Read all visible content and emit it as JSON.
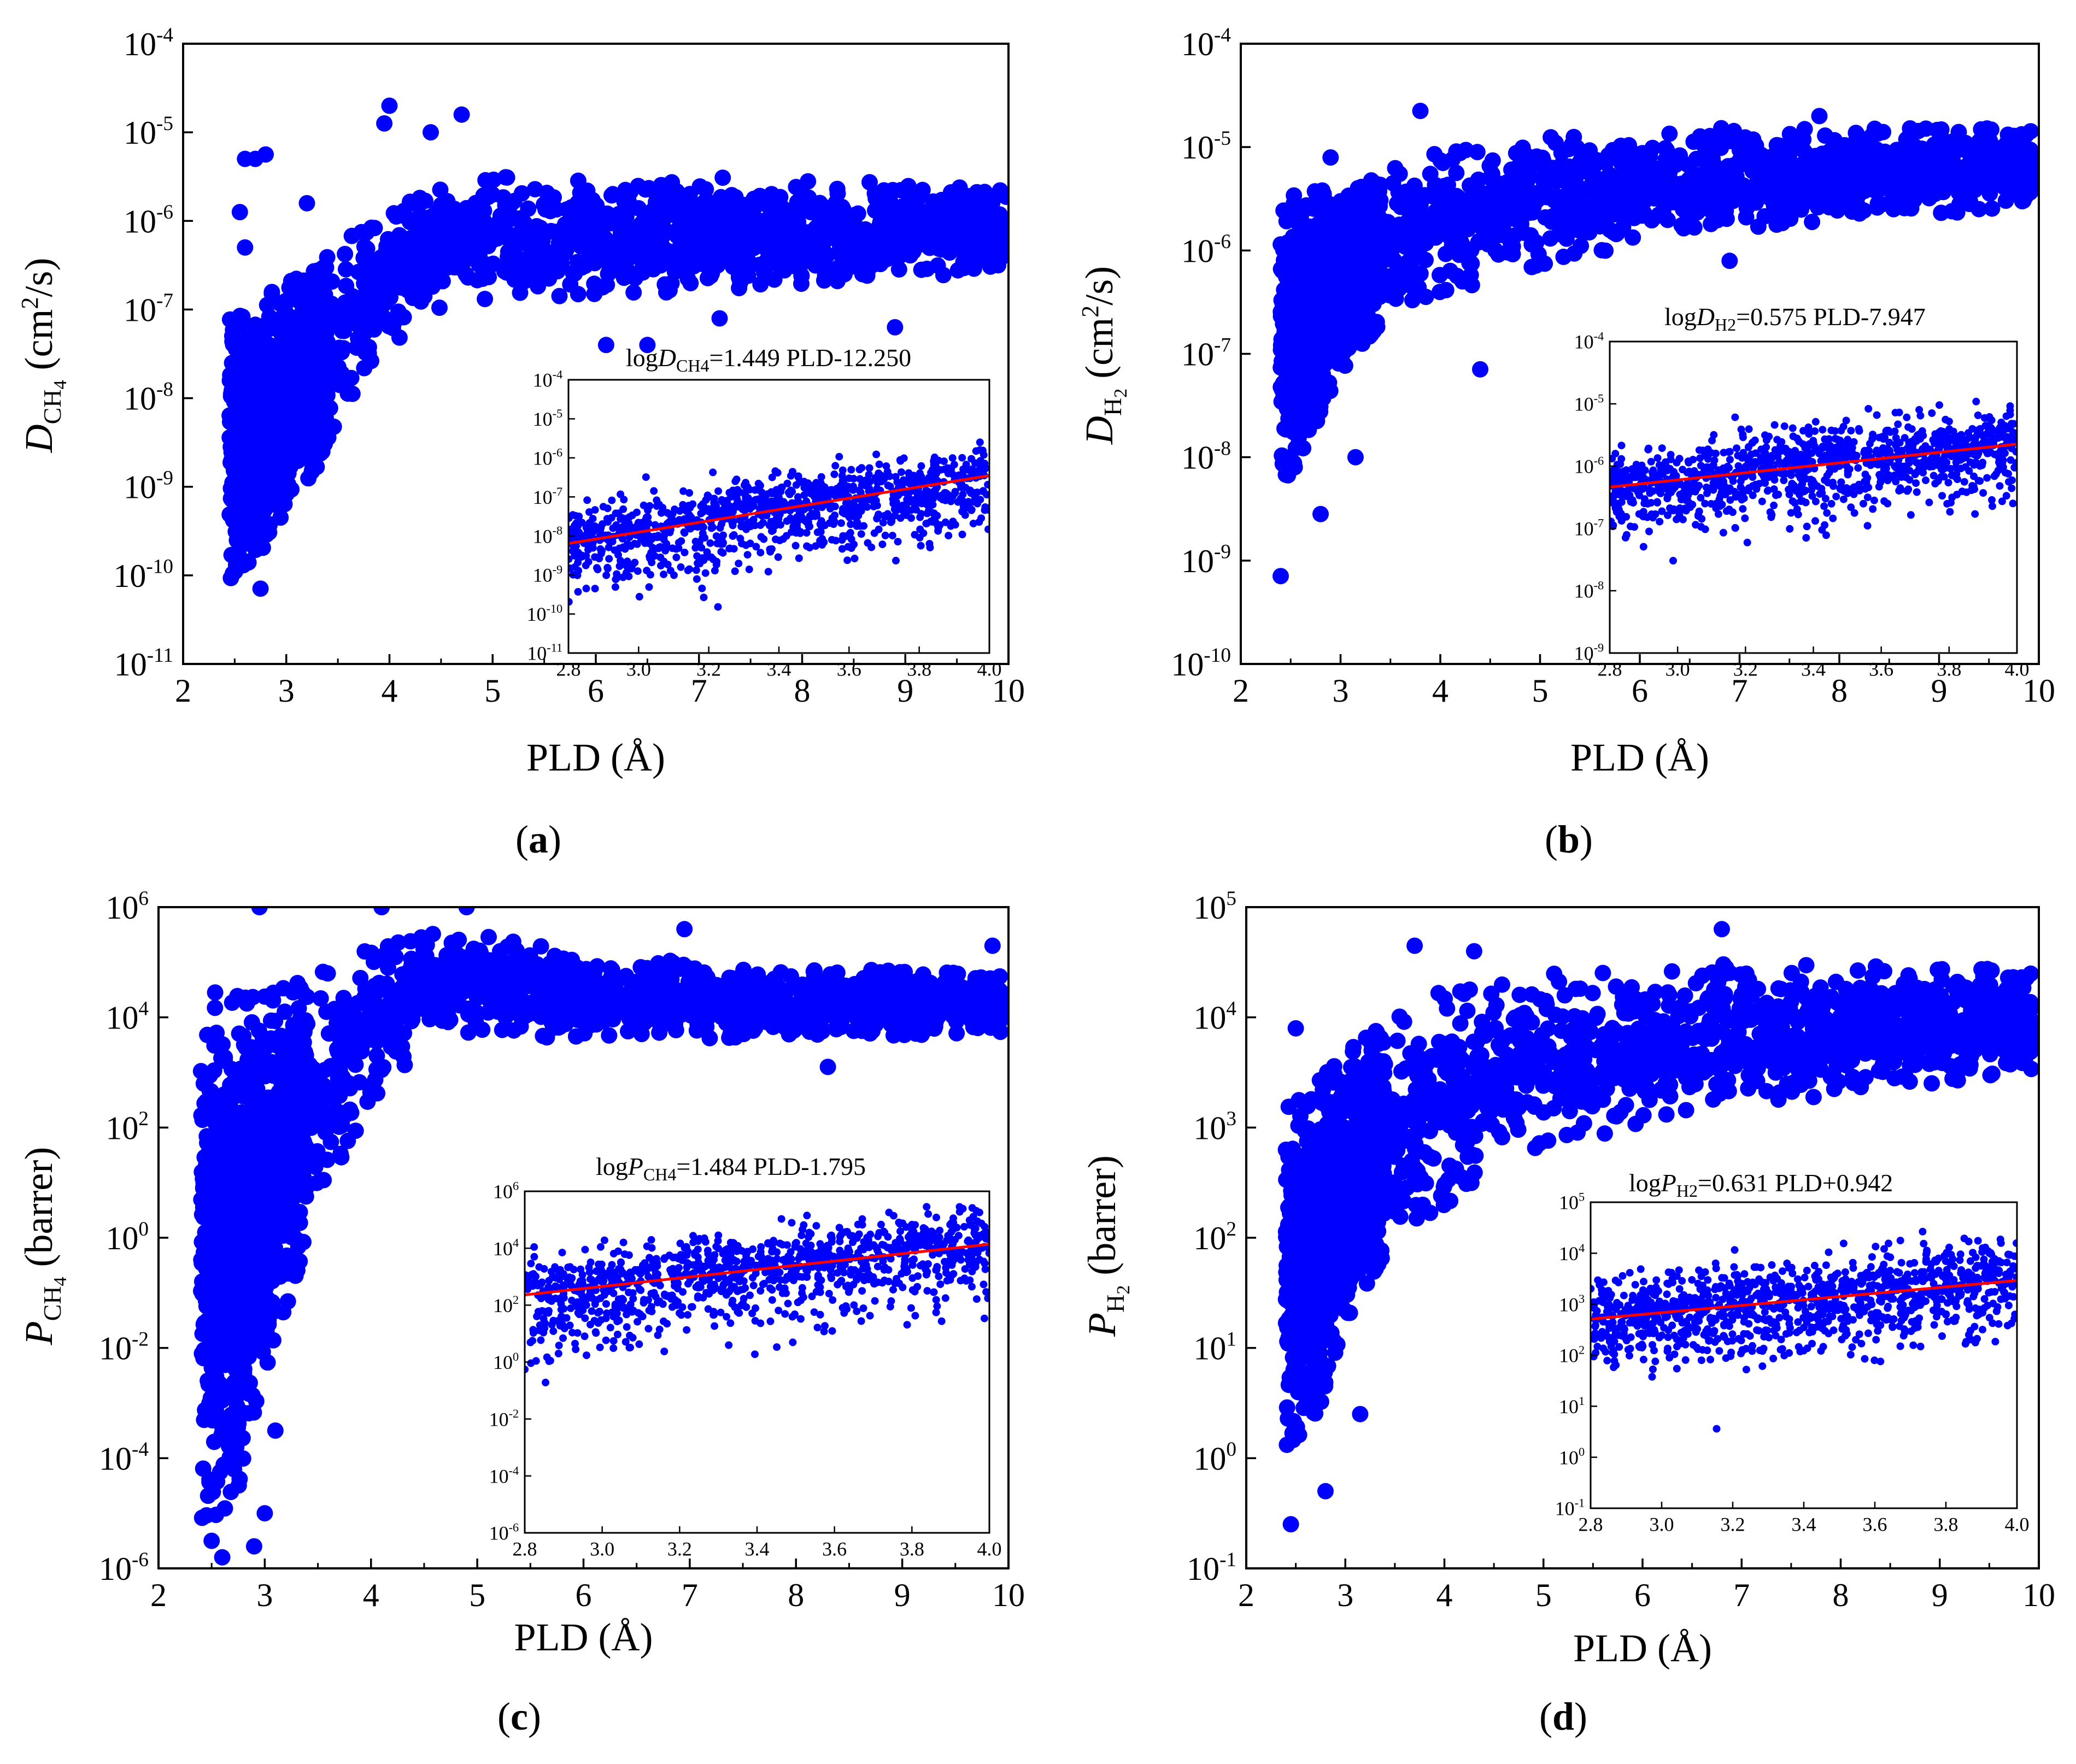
{
  "figure": {
    "marker_color": "#0000ff",
    "fit_color": "#ff0000",
    "axis_color": "#000000"
  },
  "chart_data": [
    {
      "panel": "a",
      "type": "scatter",
      "caption": "(a)",
      "ylabel_base": "D",
      "ylabel_sub": "CH",
      "ylabel_sub2": "4",
      "ylabel_unit_pre": " (cm",
      "ylabel_unit_sup": "2",
      "ylabel_unit_post": "/s)",
      "xlabel": "PLD (Å)",
      "x_range": [
        2,
        10
      ],
      "y_range_exp": [
        -11,
        -4
      ],
      "x_ticks": [
        2,
        3,
        4,
        5,
        6,
        7,
        8,
        9,
        10
      ],
      "y_tick_exps": [
        -11,
        -10,
        -9,
        -8,
        -7,
        -6,
        -5,
        -4
      ],
      "data_envelope": [
        {
          "x": 2.45,
          "ylo": -10.1,
          "yhi": -7.1
        },
        {
          "x": 2.8,
          "ylo": -9.7,
          "yhi": -6.8
        },
        {
          "x": 3.0,
          "ylo": -9.3,
          "yhi": -6.7
        },
        {
          "x": 3.3,
          "ylo": -8.8,
          "yhi": -6.5
        },
        {
          "x": 3.6,
          "ylo": -8.1,
          "yhi": -6.1
        },
        {
          "x": 4.0,
          "ylo": -7.4,
          "yhi": -5.8
        },
        {
          "x": 4.5,
          "ylo": -7.0,
          "yhi": -5.6
        },
        {
          "x": 5.0,
          "ylo": -6.9,
          "yhi": -5.5
        },
        {
          "x": 7.0,
          "ylo": -6.8,
          "yhi": -5.5
        },
        {
          "x": 10.0,
          "ylo": -6.6,
          "yhi": -5.6
        }
      ],
      "outliers": [
        [
          2.7,
          -5.3
        ],
        [
          2.8,
          -5.25
        ],
        [
          2.6,
          -5.3
        ],
        [
          2.55,
          -5.9
        ],
        [
          2.6,
          -6.3
        ],
        [
          2.75,
          -10.15
        ],
        [
          4.0,
          -4.7
        ],
        [
          3.95,
          -4.9
        ],
        [
          4.7,
          -4.8
        ],
        [
          4.4,
          -5.0
        ],
        [
          6.1,
          -7.4
        ],
        [
          6.5,
          -7.4
        ],
        [
          8.9,
          -7.2
        ],
        [
          7.2,
          -7.1
        ],
        [
          3.2,
          -5.8
        ],
        [
          9.9,
          -6.5
        ]
      ],
      "inset": {
        "equation_pre": "logD",
        "equation_sub": "CH4",
        "equation_post": "=1.449 PLD-12.250",
        "x_range": [
          2.8,
          4.0
        ],
        "x_ticks": [
          "2.8",
          "3.0",
          "3.2",
          "3.4",
          "3.6",
          "3.8",
          "4.0"
        ],
        "y_range_exp": [
          -11,
          -4
        ],
        "y_tick_exps": [
          -11,
          -10,
          -9,
          -8,
          -7,
          -6,
          -5,
          -4
        ],
        "fit": {
          "slope": 1.449,
          "intercept": -12.25
        },
        "spread_lo": 1.2,
        "spread_hi": 0.7
      }
    },
    {
      "panel": "b",
      "type": "scatter",
      "caption": "(b)",
      "ylabel_base": "D",
      "ylabel_sub": "H",
      "ylabel_sub2": "2",
      "ylabel_unit_pre": " (cm",
      "ylabel_unit_sup": "2",
      "ylabel_unit_post": "/s)",
      "xlabel": "PLD (Å)",
      "x_range": [
        2,
        10
      ],
      "y_range_exp": [
        -10,
        -4
      ],
      "x_ticks": [
        2,
        3,
        4,
        5,
        6,
        7,
        8,
        9,
        10
      ],
      "y_tick_exps": [
        -10,
        -9,
        -8,
        -7,
        -6,
        -5,
        -4
      ],
      "data_envelope": [
        {
          "x": 2.4,
          "ylo": -8.4,
          "yhi": -5.5
        },
        {
          "x": 2.8,
          "ylo": -7.6,
          "yhi": -5.4
        },
        {
          "x": 3.0,
          "ylo": -7.2,
          "yhi": -5.5
        },
        {
          "x": 3.5,
          "ylo": -6.6,
          "yhi": -5.2
        },
        {
          "x": 4.0,
          "ylo": -6.4,
          "yhi": -5.0
        },
        {
          "x": 5.0,
          "ylo": -6.2,
          "yhi": -4.9
        },
        {
          "x": 6.0,
          "ylo": -5.9,
          "yhi": -4.85
        },
        {
          "x": 7.0,
          "ylo": -5.8,
          "yhi": -4.8
        },
        {
          "x": 8.0,
          "ylo": -5.7,
          "yhi": -4.8
        },
        {
          "x": 10.0,
          "ylo": -5.6,
          "yhi": -4.8
        }
      ],
      "outliers": [
        [
          2.4,
          -9.15
        ],
        [
          2.8,
          -8.55
        ],
        [
          3.15,
          -8.0
        ],
        [
          4.4,
          -7.15
        ],
        [
          6.9,
          -6.1
        ],
        [
          2.9,
          -5.1
        ],
        [
          3.8,
          -4.65
        ],
        [
          7.8,
          -4.7
        ],
        [
          9.4,
          -5.6
        ]
      ],
      "inset": {
        "equation_pre": "logD",
        "equation_sub": "H2",
        "equation_post": "=0.575 PLD-7.947",
        "x_range": [
          2.8,
          4.0
        ],
        "x_ticks": [
          "2.8",
          "3.0",
          "3.2",
          "3.4",
          "3.6",
          "3.8",
          "4.0"
        ],
        "y_range_exp": [
          -9,
          -4
        ],
        "y_tick_exps": [
          -9,
          -8,
          -7,
          -6,
          -5,
          -4
        ],
        "fit": {
          "slope": 0.575,
          "intercept": -7.947
        },
        "spread_lo": 0.75,
        "spread_hi": 0.5
      }
    },
    {
      "panel": "c",
      "type": "scatter",
      "caption": "(c)",
      "ylabel_base": "P",
      "ylabel_sub": "CH",
      "ylabel_sub2": "4",
      "ylabel_unit_pre": " (barrer)",
      "ylabel_unit_sup": "",
      "ylabel_unit_post": "",
      "xlabel": "PLD (Å)",
      "x_range": [
        2,
        10
      ],
      "y_range_exp": [
        -6,
        6
      ],
      "x_ticks": [
        2,
        3,
        4,
        5,
        6,
        7,
        8,
        9,
        10
      ],
      "y_tick_exps": [
        -6,
        -4,
        -2,
        0,
        2,
        4,
        6
      ],
      "data_envelope": [
        {
          "x": 2.4,
          "ylo": -5.2,
          "yhi": 4.5
        },
        {
          "x": 2.7,
          "ylo": -5.0,
          "yhi": 4.4
        },
        {
          "x": 3.0,
          "ylo": -2.5,
          "yhi": 4.4
        },
        {
          "x": 3.5,
          "ylo": 0.5,
          "yhi": 4.8
        },
        {
          "x": 4.0,
          "ylo": 2.5,
          "yhi": 5.3
        },
        {
          "x": 4.5,
          "ylo": 3.5,
          "yhi": 5.6
        },
        {
          "x": 5.0,
          "ylo": 3.7,
          "yhi": 5.5
        },
        {
          "x": 6.0,
          "ylo": 3.6,
          "yhi": 5.2
        },
        {
          "x": 7.0,
          "ylo": 3.6,
          "yhi": 5.0
        },
        {
          "x": 10.0,
          "ylo": 3.7,
          "yhi": 4.8
        }
      ],
      "outliers": [
        [
          2.6,
          -5.8
        ],
        [
          2.5,
          -5.5
        ],
        [
          2.9,
          -5.6
        ],
        [
          3.0,
          -5.0
        ],
        [
          2.95,
          6.0
        ],
        [
          4.9,
          6.0
        ],
        [
          4.1,
          6.0
        ],
        [
          9.85,
          5.3
        ],
        [
          6.95,
          5.6
        ],
        [
          3.1,
          -3.5
        ],
        [
          8.3,
          3.1
        ]
      ],
      "inset": {
        "equation_pre": "logP",
        "equation_sub": "CH4",
        "equation_post": "=1.484 PLD-1.795",
        "x_range": [
          2.8,
          4.0
        ],
        "x_ticks": [
          "2.8",
          "3.0",
          "3.2",
          "3.4",
          "3.6",
          "3.8",
          "4.0"
        ],
        "y_range_exp": [
          -6,
          6
        ],
        "y_tick_exps": [
          -6,
          -4,
          -2,
          0,
          2,
          4,
          6
        ],
        "fit": {
          "slope": 1.484,
          "intercept": -1.795
        },
        "spread_lo": 1.9,
        "spread_hi": 1.1
      }
    },
    {
      "panel": "d",
      "type": "scatter",
      "caption": "(d)",
      "ylabel_base": "P",
      "ylabel_sub": "H",
      "ylabel_sub2": "2",
      "ylabel_unit_pre": " (barrer)",
      "ylabel_unit_sup": "",
      "ylabel_unit_post": "",
      "xlabel": "PLD (Å)",
      "x_range": [
        2,
        10
      ],
      "y_range_exp": [
        -1,
        5
      ],
      "x_ticks": [
        2,
        3,
        4,
        5,
        6,
        7,
        8,
        9,
        10
      ],
      "y_tick_exps": [
        -1,
        0,
        1,
        2,
        3,
        4,
        5
      ],
      "data_envelope": [
        {
          "x": 2.4,
          "ylo": 0.0,
          "yhi": 3.3
        },
        {
          "x": 2.7,
          "ylo": 0.3,
          "yhi": 3.4
        },
        {
          "x": 3.0,
          "ylo": 1.2,
          "yhi": 3.7
        },
        {
          "x": 3.5,
          "ylo": 2.0,
          "yhi": 4.0
        },
        {
          "x": 4.0,
          "ylo": 2.3,
          "yhi": 4.3
        },
        {
          "x": 5.0,
          "ylo": 2.8,
          "yhi": 4.4
        },
        {
          "x": 6.0,
          "ylo": 3.0,
          "yhi": 4.45
        },
        {
          "x": 7.0,
          "ylo": 3.2,
          "yhi": 4.5
        },
        {
          "x": 8.0,
          "ylo": 3.3,
          "yhi": 4.5
        },
        {
          "x": 10.0,
          "ylo": 3.5,
          "yhi": 4.45
        }
      ],
      "outliers": [
        [
          2.45,
          -0.6
        ],
        [
          2.8,
          -0.3
        ],
        [
          3.15,
          0.4
        ],
        [
          6.8,
          4.8
        ],
        [
          3.7,
          4.65
        ],
        [
          4.3,
          4.6
        ],
        [
          2.5,
          3.9
        ],
        [
          9.8,
          3.6
        ]
      ],
      "inset": {
        "equation_pre": "logP",
        "equation_sub": "H2",
        "equation_post": "=0.631 PLD+0.942",
        "x_range": [
          2.8,
          4.0
        ],
        "x_ticks": [
          "2.8",
          "3.0",
          "3.2",
          "3.4",
          "3.6",
          "3.8",
          "4.0"
        ],
        "y_range_exp": [
          -1,
          5
        ],
        "y_tick_exps": [
          -1,
          0,
          1,
          2,
          3,
          4,
          5
        ],
        "fit": {
          "slope": 0.631,
          "intercept": 0.942
        },
        "spread_lo": 0.9,
        "spread_hi": 0.7
      }
    }
  ]
}
